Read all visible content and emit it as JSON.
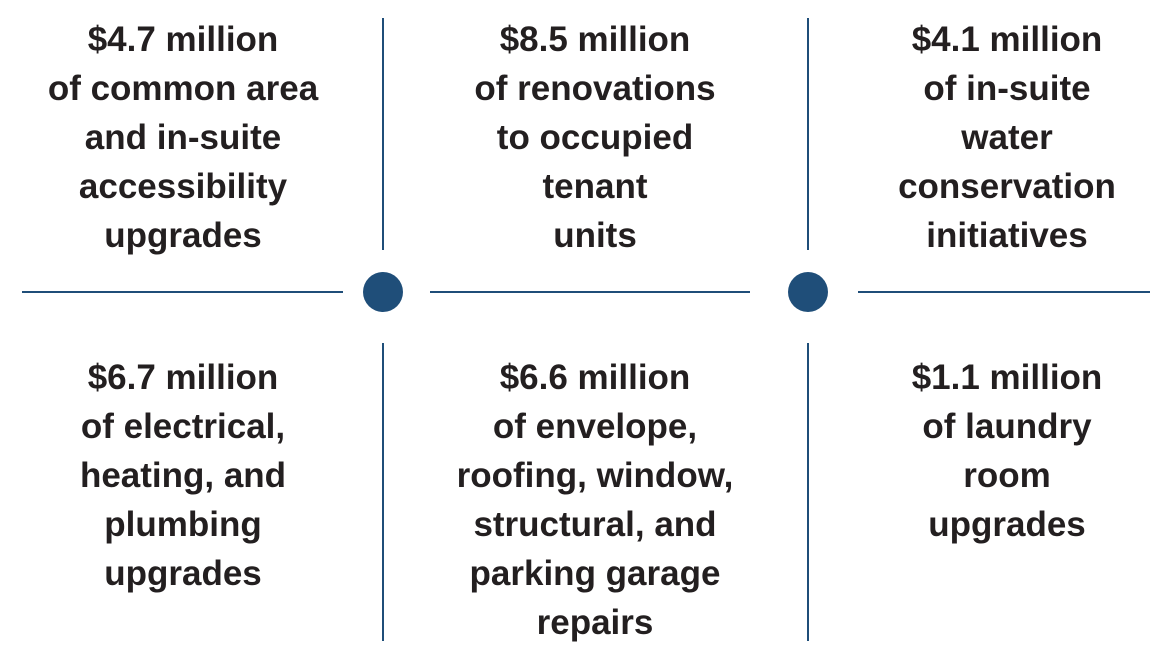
{
  "cells": [
    {
      "lines": [
        "$4.7 million",
        "of common area",
        "and in-suite",
        "accessibility",
        "upgrades"
      ]
    },
    {
      "lines": [
        "$8.5 million",
        "of renovations",
        "to occupied",
        "tenant",
        "units"
      ]
    },
    {
      "lines": [
        "$4.1 million",
        "of in-suite",
        "water",
        "conservation",
        "initiatives"
      ]
    },
    {
      "lines": [
        "$6.7 million",
        "of electrical,",
        "heating, and",
        "plumbing",
        "upgrades"
      ]
    },
    {
      "lines": [
        "$6.6 million",
        "of envelope,",
        "roofing, window,",
        "structural, and",
        "parking garage",
        "repairs"
      ]
    },
    {
      "lines": [
        "$1.1 million",
        "of laundry",
        "room",
        "upgrades"
      ]
    }
  ]
}
